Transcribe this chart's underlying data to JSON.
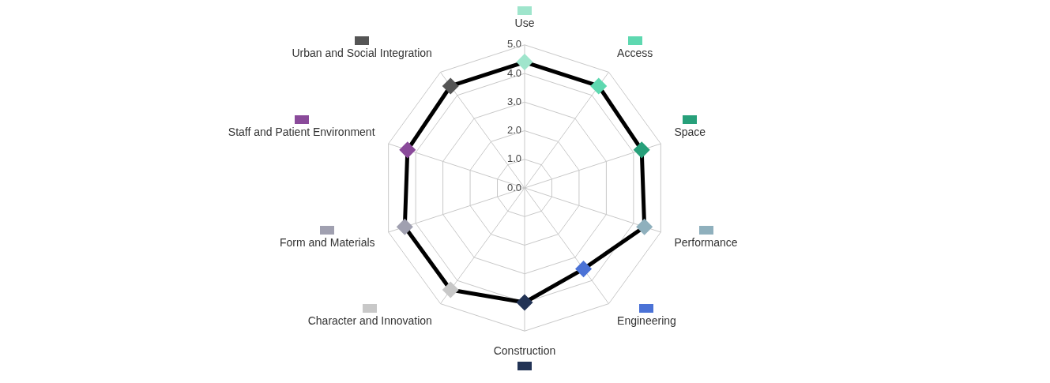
{
  "chart_data": {
    "type": "radar",
    "categories": [
      "Use",
      "Access",
      "Space",
      "Performance",
      "Engineering",
      "Construction",
      "Character and Innovation",
      "Form and Materials",
      "Staff and Patient Environment",
      "Urban and Social Integration"
    ],
    "series": [
      {
        "color": "#000000",
        "colors": [
          "#9fe5cc",
          "#5ed8b0",
          "#27a07a",
          "#8fb0bd",
          "#4b72d6",
          "#223355",
          "#c8c8c8",
          "#a0a0b0",
          "#8a4a9a",
          "#555555"
        ],
        "values": [
          4.4,
          4.4,
          4.3,
          4.4,
          3.5,
          4.0,
          4.4,
          4.4,
          4.3,
          4.4
        ]
      }
    ],
    "ylim": [
      0,
      5
    ],
    "yticks": [
      {
        "value": 0,
        "label": "0.0"
      },
      {
        "value": 1,
        "label": "1.0"
      },
      {
        "value": 2,
        "label": "2.0"
      },
      {
        "value": 3,
        "label": "3.0"
      },
      {
        "value": 4,
        "label": "4.0"
      },
      {
        "value": 5,
        "label": "5.0"
      }
    ],
    "grid": true,
    "marker": "diamond"
  }
}
